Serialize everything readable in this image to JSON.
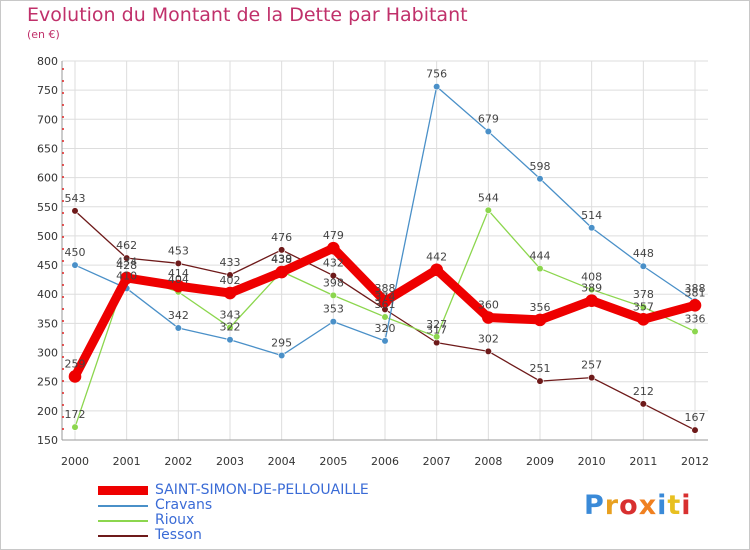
{
  "chart_data": {
    "type": "line",
    "title": "Evolution du Montant de la Dette par Habitant",
    "subtitle": "(en €)",
    "x": [
      "2000",
      "2001",
      "2002",
      "2003",
      "2004",
      "2005",
      "2006",
      "2007",
      "2008",
      "2009",
      "2010",
      "2011",
      "2012"
    ],
    "ylim": [
      150,
      800
    ],
    "yticks": [
      150,
      200,
      250,
      300,
      350,
      400,
      450,
      500,
      550,
      600,
      650,
      700,
      750,
      800
    ],
    "grid": true,
    "legend_position": "bottom-left",
    "series": [
      {
        "name": "SAINT-SIMON-DE-PELLOUAILLE",
        "color": "#ee0000",
        "values": [
          259,
          428,
          414,
          402,
          438,
          479,
          388,
          442,
          360,
          356,
          389,
          357,
          381
        ]
      },
      {
        "name": "Cravans",
        "color": "#4a90c8",
        "values": [
          450,
          410,
          342,
          322,
          295,
          353,
          320,
          756,
          679,
          598,
          514,
          448,
          388
        ]
      },
      {
        "name": "Rioux",
        "color": "#8cd64e",
        "values": [
          172,
          434,
          404,
          343,
          439,
          398,
          361,
          327,
          544,
          444,
          408,
          378,
          336
        ]
      },
      {
        "name": "Tesson",
        "color": "#6e1a1a",
        "values": [
          543,
          462,
          453,
          433,
          476,
          432,
          374,
          317,
          302,
          251,
          257,
          212,
          167
        ]
      }
    ]
  },
  "logo": {
    "text": "Proxiti",
    "colors": [
      "#3a8ad8",
      "#e8a020",
      "#d83030",
      "#f08020",
      "#3a8ad8",
      "#e8c020",
      "#d83030"
    ]
  }
}
